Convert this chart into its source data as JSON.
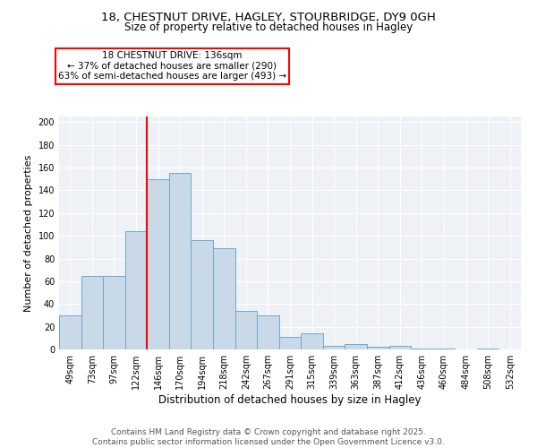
{
  "title_line1": "18, CHESTNUT DRIVE, HAGLEY, STOURBRIDGE, DY9 0GH",
  "title_line2": "Size of property relative to detached houses in Hagley",
  "xlabel": "Distribution of detached houses by size in Hagley",
  "ylabel": "Number of detached properties",
  "bar_labels": [
    "49sqm",
    "73sqm",
    "97sqm",
    "122sqm",
    "146sqm",
    "170sqm",
    "194sqm",
    "218sqm",
    "242sqm",
    "267sqm",
    "291sqm",
    "315sqm",
    "339sqm",
    "363sqm",
    "387sqm",
    "412sqm",
    "436sqm",
    "460sqm",
    "484sqm",
    "508sqm",
    "532sqm"
  ],
  "bar_values": [
    30,
    65,
    65,
    104,
    150,
    155,
    96,
    89,
    34,
    30,
    11,
    14,
    3,
    5,
    2,
    3,
    1,
    1,
    0,
    1,
    0
  ],
  "bar_color": "#c9d9e8",
  "bar_edge_color": "#6fa8c8",
  "vline_color": "red",
  "vline_index": 4,
  "annotation_line1": "18 CHESTNUT DRIVE: 136sqm",
  "annotation_line2": "← 37% of detached houses are smaller (290)",
  "annotation_line3": "63% of semi-detached houses are larger (493) →",
  "annotation_fontsize": 7.5,
  "yticks": [
    0,
    20,
    40,
    60,
    80,
    100,
    120,
    140,
    160,
    180,
    200
  ],
  "ylim": [
    0,
    205
  ],
  "bg_color": "#eef2f7",
  "footer_text": "Contains HM Land Registry data © Crown copyright and database right 2025.\nContains public sector information licensed under the Open Government Licence v3.0.",
  "title_fontsize": 9.5,
  "subtitle_fontsize": 8.5,
  "ylabel_fontsize": 8,
  "xlabel_fontsize": 8.5,
  "tick_fontsize": 7,
  "footer_fontsize": 6.5
}
